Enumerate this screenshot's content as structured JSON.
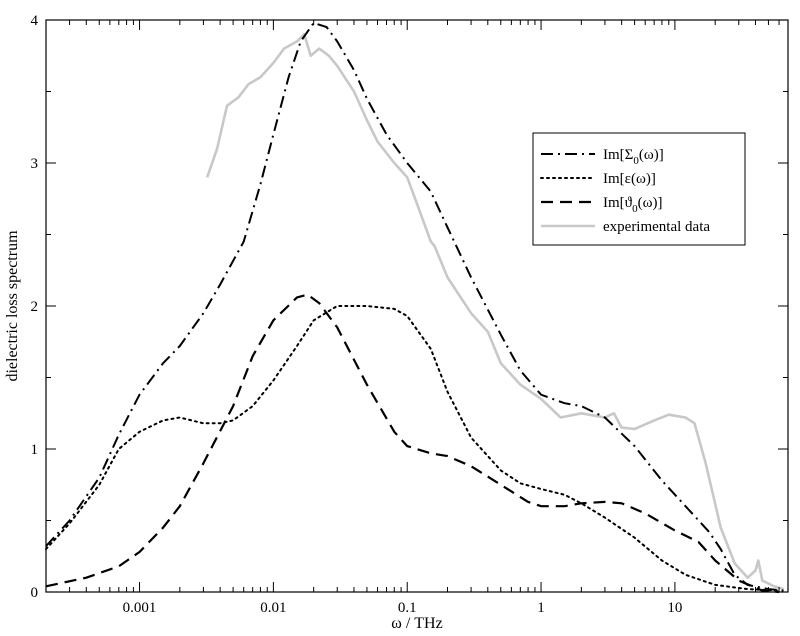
{
  "chart_data": {
    "type": "line",
    "xlabel": "ω  / THz",
    "ylabel": "dielectric loss spectrum",
    "xscale": "log",
    "xlim": [
      0.0002,
      70
    ],
    "ylim": [
      0,
      4
    ],
    "x_ticks": [
      {
        "value": 0.001,
        "label": "0.001"
      },
      {
        "value": 0.01,
        "label": "0.01"
      },
      {
        "value": 0.1,
        "label": "0.1"
      },
      {
        "value": 1,
        "label": "1"
      },
      {
        "value": 10,
        "label": "10"
      }
    ],
    "y_ticks": [
      {
        "value": 0,
        "label": "0"
      },
      {
        "value": 1,
        "label": "1"
      },
      {
        "value": 2,
        "label": "2"
      },
      {
        "value": 3,
        "label": "3"
      },
      {
        "value": 4,
        "label": "4"
      }
    ],
    "legend_position": "right",
    "grid": false,
    "series": [
      {
        "name": "Im[Σ0(ω)]",
        "legend_label": {
          "main": "Im[Σ",
          "sub": "0",
          "tail": "(ω)]"
        },
        "style": "dashdot",
        "color": "#000000",
        "points": [
          [
            0.0002,
            0.32
          ],
          [
            0.0003,
            0.5
          ],
          [
            0.0005,
            0.8
          ],
          [
            0.0007,
            1.1
          ],
          [
            0.001,
            1.38
          ],
          [
            0.0015,
            1.6
          ],
          [
            0.002,
            1.72
          ],
          [
            0.003,
            1.95
          ],
          [
            0.004,
            2.15
          ],
          [
            0.006,
            2.45
          ],
          [
            0.008,
            2.85
          ],
          [
            0.01,
            3.2
          ],
          [
            0.013,
            3.6
          ],
          [
            0.016,
            3.85
          ],
          [
            0.02,
            3.98
          ],
          [
            0.025,
            3.95
          ],
          [
            0.03,
            3.85
          ],
          [
            0.04,
            3.65
          ],
          [
            0.05,
            3.45
          ],
          [
            0.07,
            3.2
          ],
          [
            0.1,
            3.0
          ],
          [
            0.15,
            2.8
          ],
          [
            0.2,
            2.55
          ],
          [
            0.3,
            2.2
          ],
          [
            0.5,
            1.8
          ],
          [
            0.7,
            1.55
          ],
          [
            1,
            1.38
          ],
          [
            1.5,
            1.32
          ],
          [
            2,
            1.3
          ],
          [
            3,
            1.22
          ],
          [
            5,
            1.02
          ],
          [
            8,
            0.78
          ],
          [
            12,
            0.6
          ],
          [
            18,
            0.42
          ],
          [
            22,
            0.3
          ],
          [
            28,
            0.12
          ],
          [
            35,
            0.05
          ],
          [
            50,
            0.02
          ],
          [
            65,
            0.01
          ]
        ]
      },
      {
        "name": "Im[ε(ω)]",
        "legend_label": {
          "main": "Im[ε(ω)]",
          "sub": "",
          "tail": ""
        },
        "style": "dotted",
        "color": "#000000",
        "points": [
          [
            0.0002,
            0.3
          ],
          [
            0.0003,
            0.48
          ],
          [
            0.0005,
            0.75
          ],
          [
            0.0007,
            1.0
          ],
          [
            0.001,
            1.12
          ],
          [
            0.0015,
            1.2
          ],
          [
            0.002,
            1.22
          ],
          [
            0.003,
            1.18
          ],
          [
            0.004,
            1.18
          ],
          [
            0.005,
            1.2
          ],
          [
            0.007,
            1.3
          ],
          [
            0.01,
            1.48
          ],
          [
            0.015,
            1.72
          ],
          [
            0.02,
            1.9
          ],
          [
            0.03,
            2.0
          ],
          [
            0.05,
            2.0
          ],
          [
            0.08,
            1.98
          ],
          [
            0.1,
            1.93
          ],
          [
            0.15,
            1.7
          ],
          [
            0.2,
            1.4
          ],
          [
            0.3,
            1.08
          ],
          [
            0.5,
            0.85
          ],
          [
            0.7,
            0.76
          ],
          [
            1,
            0.72
          ],
          [
            1.5,
            0.68
          ],
          [
            2,
            0.62
          ],
          [
            3,
            0.52
          ],
          [
            5,
            0.38
          ],
          [
            8,
            0.22
          ],
          [
            12,
            0.12
          ],
          [
            20,
            0.05
          ],
          [
            35,
            0.02
          ],
          [
            60,
            0.01
          ]
        ]
      },
      {
        "name": "Im[ϑ0(ω)]",
        "legend_label": {
          "main": "Im[ϑ",
          "sub": "0",
          "tail": "(ω)]"
        },
        "style": "dashed",
        "color": "#000000",
        "points": [
          [
            0.0002,
            0.04
          ],
          [
            0.0004,
            0.1
          ],
          [
            0.0007,
            0.18
          ],
          [
            0.001,
            0.28
          ],
          [
            0.0015,
            0.45
          ],
          [
            0.002,
            0.6
          ],
          [
            0.003,
            0.9
          ],
          [
            0.005,
            1.3
          ],
          [
            0.007,
            1.65
          ],
          [
            0.01,
            1.9
          ],
          [
            0.015,
            2.06
          ],
          [
            0.018,
            2.08
          ],
          [
            0.022,
            2.02
          ],
          [
            0.03,
            1.85
          ],
          [
            0.05,
            1.45
          ],
          [
            0.08,
            1.12
          ],
          [
            0.1,
            1.02
          ],
          [
            0.15,
            0.97
          ],
          [
            0.2,
            0.95
          ],
          [
            0.3,
            0.88
          ],
          [
            0.5,
            0.75
          ],
          [
            0.8,
            0.63
          ],
          [
            1,
            0.6
          ],
          [
            1.5,
            0.6
          ],
          [
            2,
            0.62
          ],
          [
            3,
            0.63
          ],
          [
            4,
            0.62
          ],
          [
            6,
            0.55
          ],
          [
            10,
            0.43
          ],
          [
            15,
            0.35
          ],
          [
            20,
            0.22
          ],
          [
            30,
            0.08
          ],
          [
            45,
            0.01
          ],
          [
            60,
            0.0
          ]
        ]
      },
      {
        "name": "experimental data",
        "legend_label": {
          "main": "experimental data",
          "sub": "",
          "tail": ""
        },
        "style": "solid",
        "color": "#c8c8c8",
        "points": [
          [
            0.0032,
            2.9
          ],
          [
            0.0038,
            3.1
          ],
          [
            0.0045,
            3.4
          ],
          [
            0.0055,
            3.46
          ],
          [
            0.0065,
            3.55
          ],
          [
            0.008,
            3.6
          ],
          [
            0.01,
            3.7
          ],
          [
            0.012,
            3.8
          ],
          [
            0.015,
            3.85
          ],
          [
            0.017,
            3.9
          ],
          [
            0.019,
            3.75
          ],
          [
            0.022,
            3.8
          ],
          [
            0.026,
            3.75
          ],
          [
            0.03,
            3.68
          ],
          [
            0.04,
            3.5
          ],
          [
            0.05,
            3.3
          ],
          [
            0.06,
            3.15
          ],
          [
            0.08,
            3.0
          ],
          [
            0.1,
            2.9
          ],
          [
            0.12,
            2.7
          ],
          [
            0.15,
            2.45
          ],
          [
            0.16,
            2.42
          ],
          [
            0.2,
            2.2
          ],
          [
            0.3,
            1.95
          ],
          [
            0.4,
            1.82
          ],
          [
            0.5,
            1.6
          ],
          [
            0.7,
            1.45
          ],
          [
            1,
            1.35
          ],
          [
            1.4,
            1.22
          ],
          [
            2,
            1.25
          ],
          [
            3,
            1.22
          ],
          [
            3.5,
            1.25
          ],
          [
            4,
            1.15
          ],
          [
            5,
            1.14
          ],
          [
            7,
            1.2
          ],
          [
            9,
            1.24
          ],
          [
            12,
            1.22
          ],
          [
            14,
            1.18
          ],
          [
            17,
            0.9
          ],
          [
            22,
            0.45
          ],
          [
            28,
            0.2
          ],
          [
            35,
            0.1
          ],
          [
            40,
            0.15
          ],
          [
            42,
            0.22
          ],
          [
            45,
            0.08
          ],
          [
            55,
            0.04
          ],
          [
            65,
            0.02
          ]
        ]
      }
    ]
  }
}
